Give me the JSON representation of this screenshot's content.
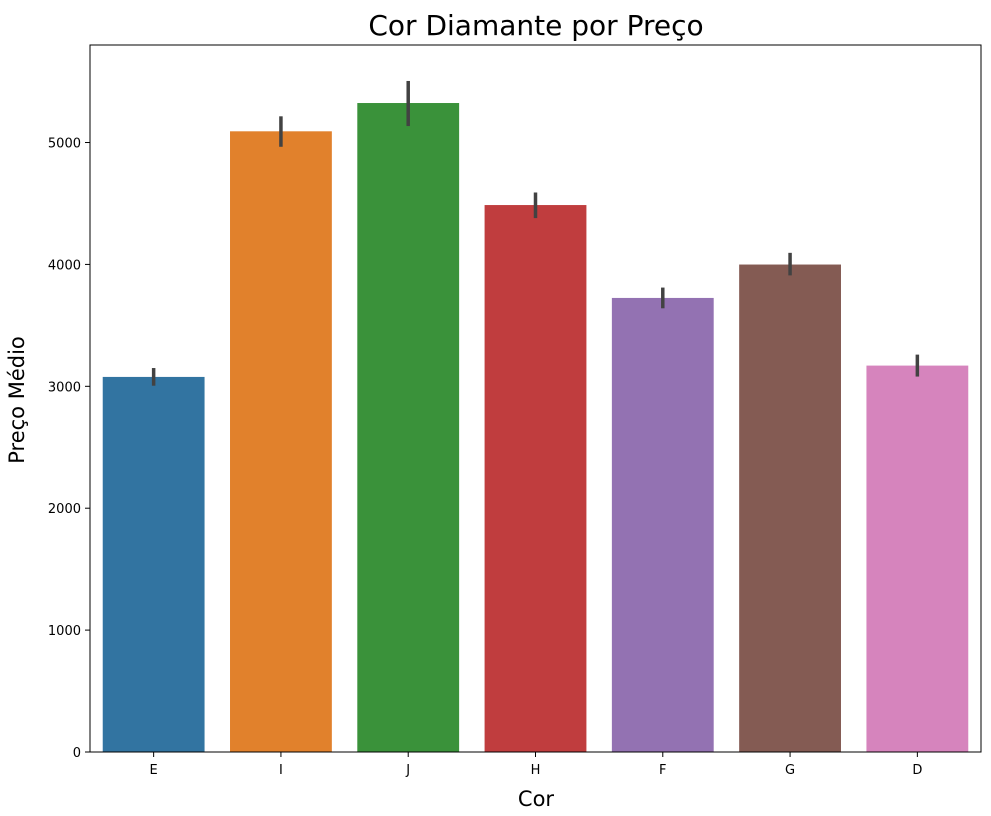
{
  "chart_data": {
    "type": "bar",
    "title": "Cor Diamante por Preço",
    "xlabel": "Cor",
    "ylabel": "Preço Médio",
    "categories": [
      "E",
      "I",
      "J",
      "H",
      "F",
      "G",
      "D"
    ],
    "values": [
      3077,
      5092,
      5324,
      4487,
      3725,
      3999,
      3170
    ],
    "error_bars": [
      [
        3005,
        3150
      ],
      [
        4965,
        5215
      ],
      [
        5135,
        5505
      ],
      [
        4380,
        4590
      ],
      [
        3640,
        3810
      ],
      [
        3910,
        4095
      ],
      [
        3080,
        3260
      ]
    ],
    "colors": [
      "#3274a1",
      "#e1812c",
      "#3a923a",
      "#c03d3e",
      "#9372b2",
      "#845b53",
      "#d684bd"
    ],
    "yticks": [
      0,
      1000,
      2000,
      3000,
      4000,
      5000
    ],
    "ylim": [
      0,
      5800
    ],
    "grid": false
  }
}
